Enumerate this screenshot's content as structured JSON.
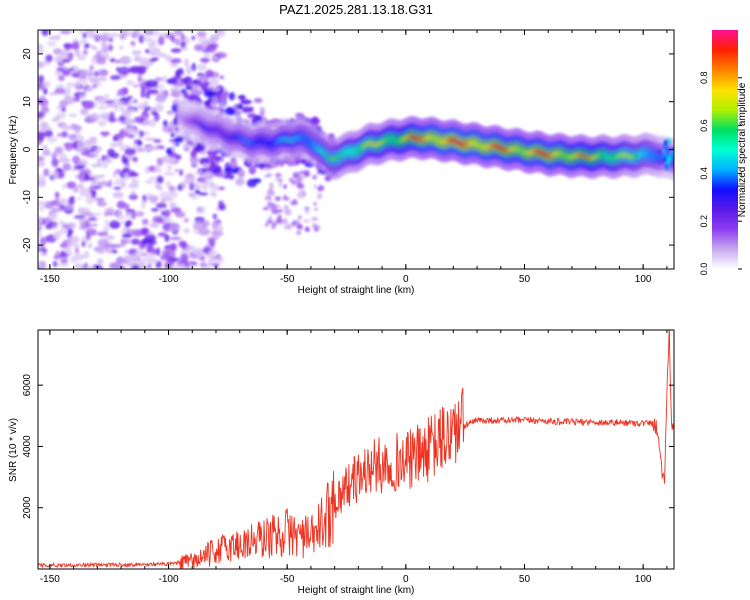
{
  "figure_title": "PAZ1.2025.281.13.18.G31",
  "chart_data": [
    {
      "type": "heatmap",
      "title": "PAZ1.2025.281.13.18.G31",
      "xlabel": "Height of straight line (km)",
      "ylabel": "Frequency (Hz)",
      "xlim": [
        -155,
        113
      ],
      "ylim": [
        -25,
        25
      ],
      "x_ticks": [
        -150,
        -100,
        -50,
        0,
        50,
        100
      ],
      "y_ticks": [
        -20,
        -10,
        0,
        10,
        20
      ],
      "colorbar": {
        "label": "Normalized spectral amplitude",
        "range": [
          0,
          1
        ],
        "ticks": [
          0.0,
          0.2,
          0.4,
          0.6,
          0.8
        ],
        "colormap": [
          "#ffffff",
          "#c8a8f0",
          "#8c3cf0",
          "#5a18e8",
          "#1010ff",
          "#00b4ff",
          "#00ffd0",
          "#00e060",
          "#b4f000",
          "#ffe000",
          "#ff8000",
          "#ff2000",
          "#ff1090"
        ]
      },
      "ridge": {
        "description_free_points_x": [
          -95,
          -85,
          -75,
          -65,
          -55,
          -45,
          -38,
          -32,
          -25,
          -15,
          -5,
          5,
          15,
          30,
          45,
          60,
          75,
          90,
          105,
          110
        ],
        "frequency": [
          7,
          5,
          3,
          1.5,
          1.5,
          2.5,
          1,
          -2,
          -1,
          1,
          2,
          2.5,
          2,
          1,
          0,
          -1,
          -1.5,
          -1.5,
          -1,
          -2
        ],
        "peak_amplitude": [
          0.15,
          0.3,
          0.35,
          0.4,
          0.45,
          0.5,
          0.55,
          0.6,
          0.7,
          0.75,
          0.8,
          0.9,
          0.95,
          0.95,
          0.9,
          0.92,
          0.85,
          0.75,
          0.55,
          0.4
        ]
      },
      "noise_region_x": [
        -155,
        -85
      ]
    },
    {
      "type": "line",
      "title": "",
      "xlabel": "Height of straight line (km)",
      "ylabel": "SNR (10 * v/v)",
      "xlim": [
        -155,
        113
      ],
      "ylim": [
        0,
        7800
      ],
      "x_ticks": [
        -150,
        -100,
        -50,
        0,
        50,
        100
      ],
      "y_ticks": [
        2000,
        4000,
        6000
      ],
      "series": [
        {
          "name": "SNR",
          "color": "#ee3322",
          "x": [
            -155,
            -140,
            -120,
            -100,
            -90,
            -85,
            -80,
            -75,
            -70,
            -65,
            -60,
            -55,
            -50,
            -45,
            -40,
            -35,
            -30,
            -25,
            -20,
            -15,
            -10,
            -5,
            0,
            5,
            10,
            15,
            20,
            25,
            30,
            35,
            40,
            45,
            50,
            55,
            60,
            65,
            70,
            75,
            80,
            85,
            90,
            95,
            100,
            104,
            106,
            108,
            109,
            110,
            111,
            112,
            113
          ],
          "y": [
            120,
            130,
            140,
            160,
            250,
            400,
            600,
            700,
            800,
            900,
            1000,
            1100,
            1200,
            1100,
            1000,
            1500,
            2200,
            2700,
            3000,
            3300,
            3400,
            3500,
            3500,
            3700,
            3900,
            4200,
            4500,
            4700,
            4850,
            4850,
            4850,
            4850,
            4850,
            4850,
            4830,
            4800,
            4800,
            4800,
            4790,
            4780,
            4780,
            4770,
            4760,
            4750,
            4600,
            3200,
            2900,
            5800,
            7800,
            4700,
            4700
          ]
        }
      ]
    }
  ]
}
